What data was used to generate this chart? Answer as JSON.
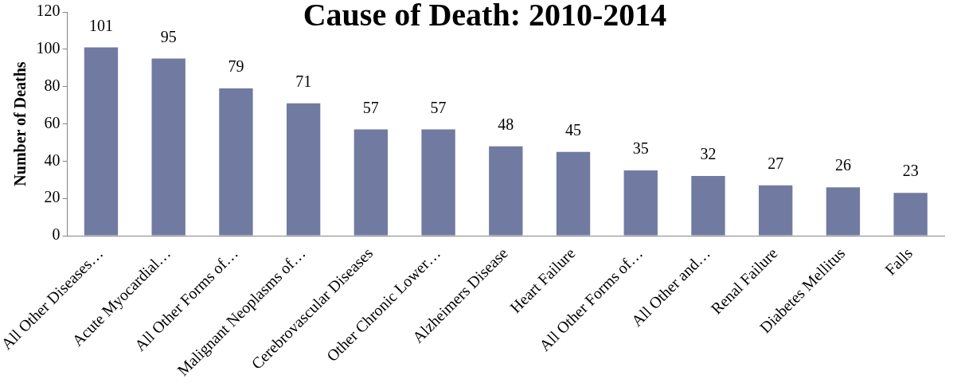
{
  "chart_data": {
    "type": "bar",
    "title": "Cause of Death: 2010-2014",
    "ylabel": "Number of Deaths",
    "categories": [
      "All Other Diseases…",
      "Acute Myocardial…",
      "All Other Forms of…",
      "Malignant Neoplasms of…",
      "Cerebrovascular Diseases",
      "Other Chronic Lower…",
      "Alzheimers Disease",
      "Heart Failure",
      "All Other Forms of…",
      "All Other and…",
      "Renal Failure",
      "Diabetes Mellitus",
      "Falls"
    ],
    "values": [
      101,
      95,
      79,
      71,
      57,
      57,
      48,
      45,
      35,
      32,
      27,
      26,
      23
    ],
    "color": "#717ba1",
    "ylim": [
      0,
      120
    ],
    "yticks": [
      0,
      20,
      40,
      60,
      80,
      100,
      120
    ],
    "grid": false,
    "data_labels": true
  }
}
